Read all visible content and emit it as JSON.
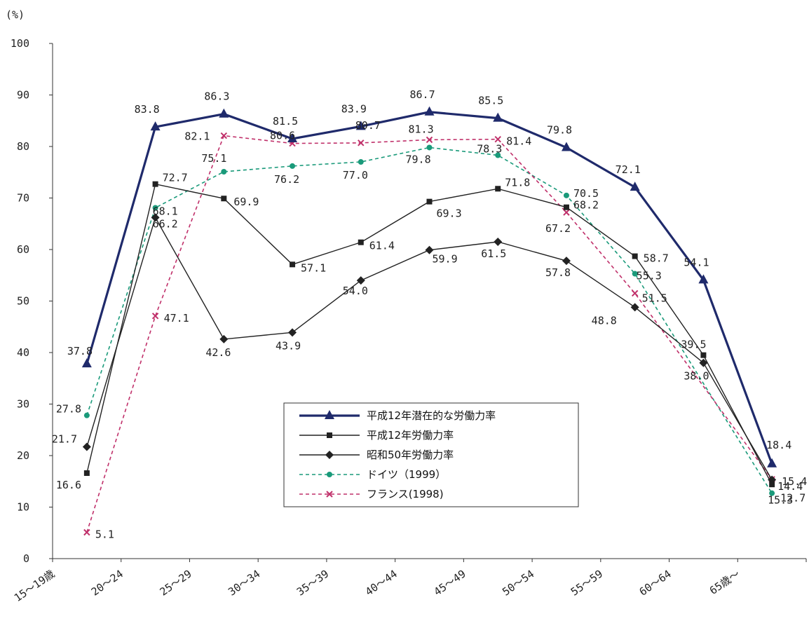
{
  "chart_data": {
    "type": "line",
    "y_unit_label": "(%)",
    "ylim": [
      0,
      100
    ],
    "yticks": [
      0,
      10,
      20,
      30,
      40,
      50,
      60,
      70,
      80,
      90,
      100
    ],
    "grid": false,
    "legend_placement": "lower-center",
    "categories": [
      "15～19歳",
      "20～24",
      "25～29",
      "30～34",
      "35～39",
      "40～44",
      "45～49",
      "50～54",
      "55～59",
      "60～64",
      "65歳～"
    ],
    "series": [
      {
        "name": "平成12年潜在的な労働力率",
        "color": "#1f2a6b",
        "style": "solid-thick",
        "marker": "triangle",
        "values": [
          37.8,
          83.8,
          86.3,
          81.5,
          83.9,
          86.7,
          85.5,
          79.8,
          72.1,
          54.1,
          18.4
        ],
        "labels": [
          "37.8",
          "83.8",
          "86.3",
          "81.5",
          "83.9",
          "86.7",
          "85.5",
          "79.8",
          "72.1",
          "54.1",
          "18.4"
        ]
      },
      {
        "name": "平成12年労働力率",
        "color": "#222222",
        "style": "solid",
        "marker": "square",
        "values": [
          16.6,
          72.7,
          69.9,
          57.1,
          61.4,
          69.3,
          71.8,
          68.2,
          58.7,
          39.5,
          14.4
        ],
        "labels": [
          "16.6",
          "72.7",
          "69.9",
          "57.1",
          "61.4",
          "69.3",
          "71.8",
          "68.2",
          "58.7",
          "39.5",
          "14.4"
        ]
      },
      {
        "name": "昭和50年労働力率",
        "color": "#222222",
        "style": "solid",
        "marker": "diamond",
        "values": [
          21.7,
          66.2,
          42.6,
          43.9,
          54.0,
          59.9,
          61.5,
          57.8,
          48.8,
          38.0,
          15.3
        ],
        "labels": [
          "21.7",
          "66.2",
          "42.6",
          "43.9",
          "54.0",
          "59.9",
          "61.5",
          "57.8",
          "48.8",
          "38.0",
          "15.3"
        ]
      },
      {
        "name": "ドイツ（1999）",
        "color": "#1a9a7a",
        "style": "dashed",
        "marker": "circle",
        "values": [
          27.8,
          68.1,
          75.1,
          76.2,
          77.0,
          79.8,
          78.3,
          70.5,
          55.3,
          null,
          12.7
        ],
        "labels": [
          "27.8",
          "68.1",
          "75.1",
          "76.2",
          "77.0",
          "79.8",
          "78.3",
          "70.5",
          "55.3",
          null,
          "12.7"
        ]
      },
      {
        "name": "フランス(1998)",
        "color": "#c0306a",
        "style": "dashed",
        "marker": "x",
        "values": [
          5.1,
          47.1,
          82.1,
          80.6,
          80.7,
          81.3,
          81.4,
          67.2,
          51.5,
          null,
          15.4
        ],
        "labels": [
          "5.1",
          "47.1",
          "82.1",
          "80.6",
          "80.7",
          "81.3",
          "81.4",
          "67.2",
          "51.5",
          null,
          "15.4"
        ]
      }
    ]
  }
}
